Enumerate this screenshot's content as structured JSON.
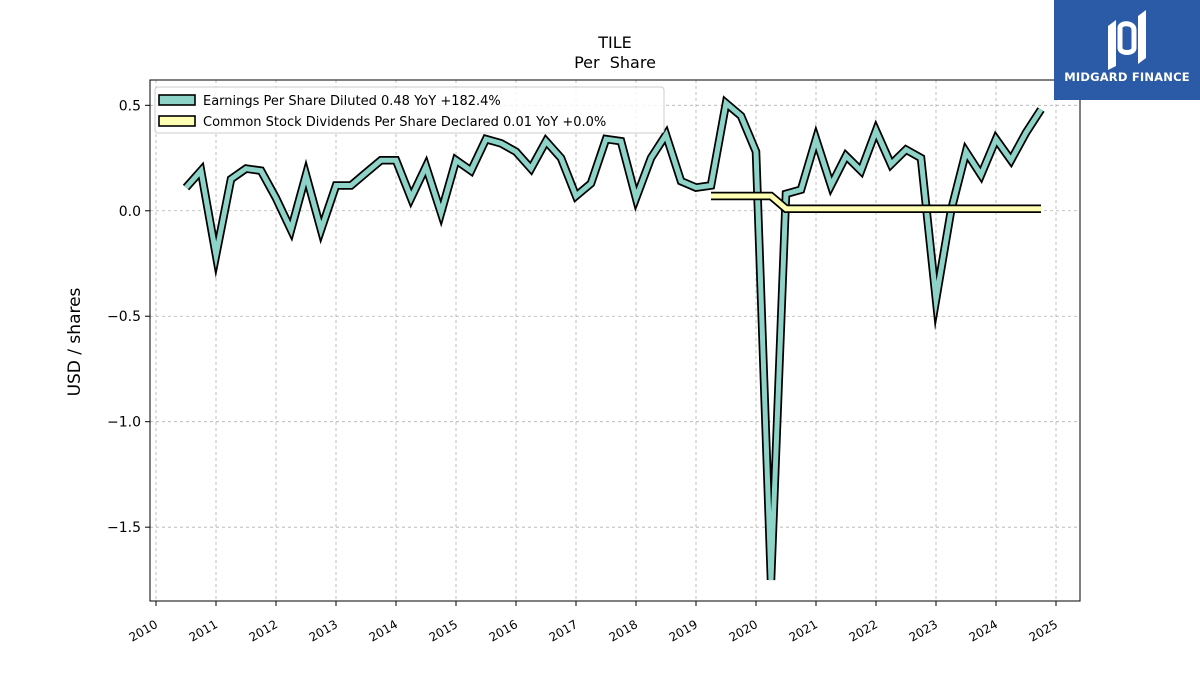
{
  "brand": {
    "name": "MIDGARD FINANCE",
    "bg_color": "#2b5aa6"
  },
  "chart_data": {
    "type": "line",
    "title": "TILE",
    "subtitle": "Per  Share",
    "xlabel": "",
    "ylabel": "USD / shares",
    "xlim": [
      2009.9,
      2025.4
    ],
    "ylim": [
      -1.85,
      0.62
    ],
    "x_ticks": [
      "2010",
      "2011",
      "2012",
      "2013",
      "2014",
      "2015",
      "2016",
      "2017",
      "2018",
      "2019",
      "2020",
      "2021",
      "2022",
      "2023",
      "2024",
      "2025"
    ],
    "y_ticks": [
      0.5,
      0.0,
      -0.5,
      -1.0,
      -1.5
    ],
    "y_tick_labels": [
      "0.5",
      "0.0",
      "−0.5",
      "−1.0",
      "−1.5"
    ],
    "grid": true,
    "legend_position": "upper-left",
    "series": [
      {
        "name": "Earnings Per Share Diluted  0.48 YoY +182.4%",
        "color": "#8dd3c7",
        "points": [
          [
            2010.5,
            0.11
          ],
          [
            2010.75,
            0.19
          ],
          [
            2011.0,
            -0.21
          ],
          [
            2011.25,
            0.15
          ],
          [
            2011.5,
            0.2
          ],
          [
            2011.75,
            0.19
          ],
          [
            2012.0,
            0.06
          ],
          [
            2012.25,
            -0.09
          ],
          [
            2012.5,
            0.17
          ],
          [
            2012.75,
            -0.09
          ],
          [
            2013.0,
            0.12
          ],
          [
            2013.25,
            0.12
          ],
          [
            2013.5,
            0.18
          ],
          [
            2013.75,
            0.24
          ],
          [
            2014.0,
            0.24
          ],
          [
            2014.25,
            0.06
          ],
          [
            2014.5,
            0.21
          ],
          [
            2014.75,
            -0.01
          ],
          [
            2015.0,
            0.24
          ],
          [
            2015.25,
            0.19
          ],
          [
            2015.5,
            0.34
          ],
          [
            2015.75,
            0.32
          ],
          [
            2016.0,
            0.28
          ],
          [
            2016.25,
            0.2
          ],
          [
            2016.5,
            0.33
          ],
          [
            2016.75,
            0.25
          ],
          [
            2017.0,
            0.07
          ],
          [
            2017.25,
            0.13
          ],
          [
            2017.5,
            0.34
          ],
          [
            2017.75,
            0.33
          ],
          [
            2018.0,
            0.06
          ],
          [
            2018.25,
            0.25
          ],
          [
            2018.5,
            0.36
          ],
          [
            2018.75,
            0.14
          ],
          [
            2019.0,
            0.11
          ],
          [
            2019.25,
            0.12
          ],
          [
            2019.5,
            0.51
          ],
          [
            2019.75,
            0.45
          ],
          [
            2020.0,
            0.28
          ],
          [
            2020.25,
            -1.75
          ],
          [
            2020.5,
            0.08
          ],
          [
            2020.75,
            0.1
          ],
          [
            2021.0,
            0.34
          ],
          [
            2021.25,
            0.12
          ],
          [
            2021.5,
            0.26
          ],
          [
            2021.75,
            0.19
          ],
          [
            2022.0,
            0.38
          ],
          [
            2022.25,
            0.22
          ],
          [
            2022.5,
            0.29
          ],
          [
            2022.75,
            0.25
          ],
          [
            2023.0,
            -0.42
          ],
          [
            2023.25,
            0.0
          ],
          [
            2023.5,
            0.28
          ],
          [
            2023.75,
            0.17
          ],
          [
            2024.0,
            0.34
          ],
          [
            2024.25,
            0.24
          ],
          [
            2024.5,
            0.37
          ],
          [
            2024.75,
            0.48
          ]
        ]
      },
      {
        "name": "Common Stock Dividends Per Share Declared  0.01 YoY +0.0%",
        "color": "#ffffb3",
        "points": [
          [
            2019.25,
            0.07
          ],
          [
            2019.5,
            0.07
          ],
          [
            2019.75,
            0.07
          ],
          [
            2020.0,
            0.07
          ],
          [
            2020.25,
            0.07
          ],
          [
            2020.5,
            0.01
          ],
          [
            2020.75,
            0.01
          ],
          [
            2021.0,
            0.01
          ],
          [
            2021.5,
            0.01
          ],
          [
            2022.0,
            0.01
          ],
          [
            2022.5,
            0.01
          ],
          [
            2023.0,
            0.01
          ],
          [
            2023.5,
            0.01
          ],
          [
            2024.0,
            0.01
          ],
          [
            2024.5,
            0.01
          ],
          [
            2024.75,
            0.01
          ]
        ]
      }
    ]
  }
}
